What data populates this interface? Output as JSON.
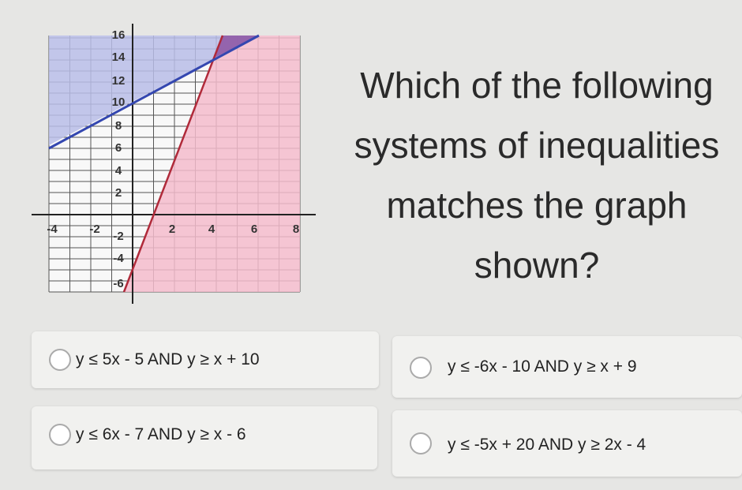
{
  "graph": {
    "y_tick_labels": [
      "16",
      "14",
      "12",
      "10",
      "8",
      "6",
      "4",
      "2",
      "-2",
      "-4",
      "-6"
    ],
    "x_tick_labels": [
      "-4",
      "-2",
      "2",
      "4",
      "6",
      "8"
    ]
  },
  "question": "Which of the following systems of inequalities matches the graph shown?",
  "options": [
    "y ≤ 5x - 5 AND y ≥ x + 10",
    "y ≤ -6x - 10 AND y ≥ x + 9",
    "y ≤ 6x - 7 AND y ≥ x - 6",
    "y ≤ -5x + 20 AND y ≥ 2x - 4"
  ]
}
